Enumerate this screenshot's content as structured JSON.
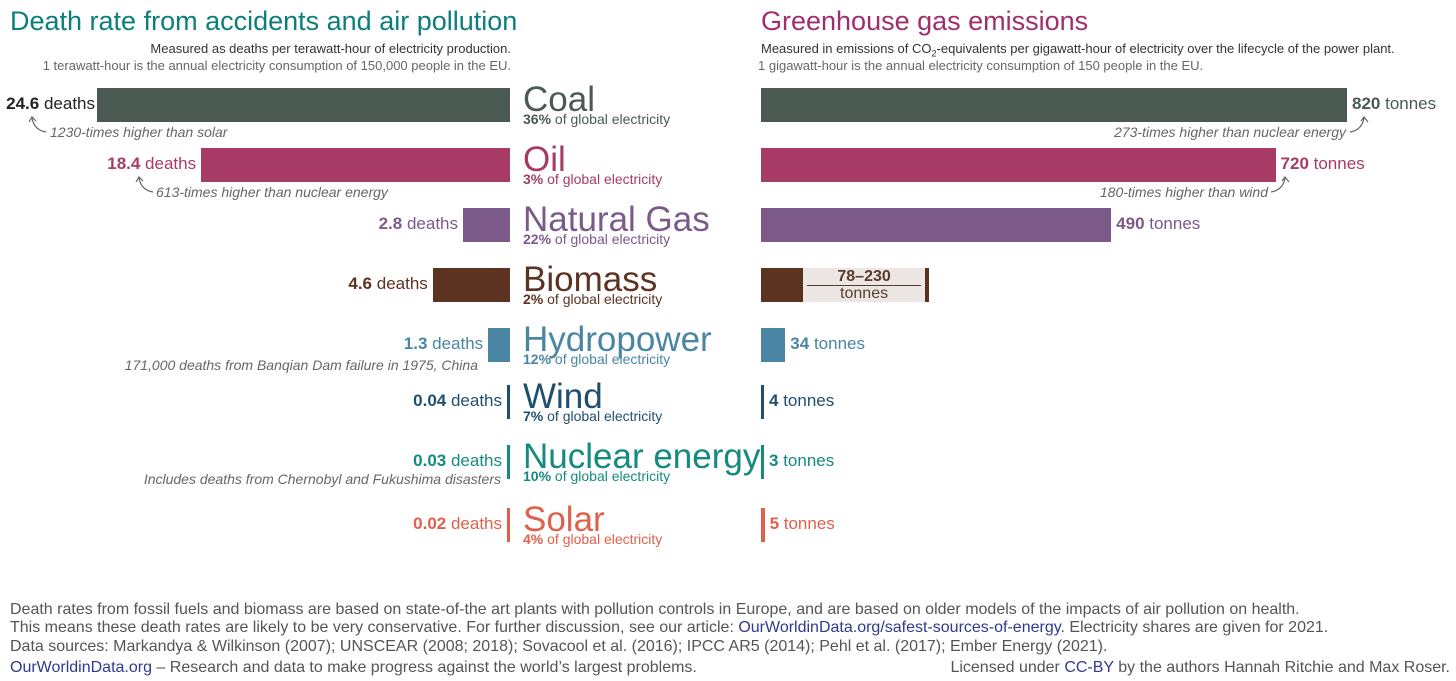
{
  "left": {
    "title": "Death rate from accidents and air pollution",
    "subtitle_line1": "Measured as deaths per terawatt-hour of electricity production.",
    "subtitle_line2": "1 terawatt-hour is the annual electricity consumption of 150,000 people in the EU."
  },
  "right": {
    "title": "Greenhouse gas emissions",
    "subtitle_line1_a": "Measured in emissions of CO",
    "subtitle_line1_sub": "2",
    "subtitle_line1_b": "-equivalents per gigawatt-hour of electricity over the lifecycle of the power plant.",
    "subtitle_line2": "1 gigawatt-hour is the annual electricity consumption of 150 people in the EU."
  },
  "sources": [
    {
      "name": "Coal",
      "share": "36%",
      "share_suffix": " of global electricity",
      "deaths_label": "24.6",
      "deaths_unit": " deaths",
      "emissions_label": "820",
      "emissions_unit": " tonnes"
    },
    {
      "name": "Oil",
      "share": "3%",
      "share_suffix": " of global electricity",
      "deaths_label": "18.4",
      "deaths_unit": " deaths",
      "emissions_label": "720",
      "emissions_unit": " tonnes"
    },
    {
      "name": "Natural Gas",
      "share": "22%",
      "share_suffix": " of global electricity",
      "deaths_label": "2.8",
      "deaths_unit": " deaths",
      "emissions_label": "490",
      "emissions_unit": " tonnes"
    },
    {
      "name": "Biomass",
      "share": "2%",
      "share_suffix": " of global electricity",
      "deaths_label": "4.6",
      "deaths_unit": " deaths",
      "emissions_label": "78–230",
      "emissions_unit": "tonnes"
    },
    {
      "name": "Hydropower",
      "share": "12%",
      "share_suffix": " of global electricity",
      "deaths_label": "1.3",
      "deaths_unit": " deaths",
      "emissions_label": "34",
      "emissions_unit": " tonnes"
    },
    {
      "name": "Wind",
      "share": "7%",
      "share_suffix": " of global electricity",
      "deaths_label": "0.04",
      "deaths_unit": " deaths",
      "emissions_label": "4",
      "emissions_unit": " tonnes"
    },
    {
      "name": "Nuclear energy",
      "share": "10%",
      "share_suffix": " of global electricity",
      "deaths_label": "0.03",
      "deaths_unit": " deaths",
      "emissions_label": "3",
      "emissions_unit": " tonnes"
    },
    {
      "name": "Solar",
      "share": "4%",
      "share_suffix": " of global electricity",
      "deaths_label": "0.02",
      "deaths_unit": " deaths",
      "emissions_label": "5",
      "emissions_unit": " tonnes"
    }
  ],
  "notes": {
    "coal_left": "1230-times higher than solar",
    "oil_left": "613-times higher than nuclear energy",
    "hydro_left": "171,000 deaths from Banqian Dam failure in 1975, China",
    "nuclear_left": "Includes deaths from Chernobyl and Fukushima disasters",
    "coal_right": "273-times higher than nuclear energy",
    "oil_right": "180-times higher than wind"
  },
  "footer": {
    "line1": "Death rates from fossil fuels and biomass are based on state-of-the art plants with pollution controls in Europe, and are based on older models of the impacts of air pollution on health.",
    "line2_a": "This means these death rates are likely to be very conservative. For further discussion, see our article: ",
    "line2_link": "OurWorldinData.org/safest-sources-of-energy",
    "line2_b": ". Electricity shares are given for 2021.",
    "line3": "Data sources: Markandya & Wilkinson (2007); UNSCEAR (2008; 2018); Sovacool et al. (2016); IPCC AR5 (2014); Pehl et al. (2017); Ember Energy (2021).",
    "line4_link": "OurWorldinData.org",
    "line4_b": " – Research and data to make progress against the world’s largest problems.",
    "license_a": "Licensed under ",
    "license_link": "CC-BY",
    "license_b": " by the authors Hannah Ritchie and Max Roser."
  },
  "colors": {
    "Coal": "#4a5a53",
    "Oil": "#a73b66",
    "Natural Gas": "#7b5a8a",
    "Biomass": "#5c3320",
    "Hydropower": "#4a86a4",
    "Wind": "#1f4e6e",
    "Nuclear energy": "#158a80",
    "Solar": "#e0604c"
  },
  "chart_data": [
    {
      "type": "bar",
      "title": "Death rate from accidents and air pollution",
      "categories": [
        "Coal",
        "Oil",
        "Natural Gas",
        "Biomass",
        "Hydropower",
        "Wind",
        "Nuclear energy",
        "Solar"
      ],
      "values": [
        24.6,
        18.4,
        2.8,
        4.6,
        1.3,
        0.04,
        0.03,
        0.02
      ],
      "unit": "deaths per terawatt-hour"
    },
    {
      "type": "bar",
      "title": "Greenhouse gas emissions",
      "categories": [
        "Coal",
        "Oil",
        "Natural Gas",
        "Biomass",
        "Hydropower",
        "Wind",
        "Nuclear energy",
        "Solar"
      ],
      "values": [
        820,
        720,
        490,
        230,
        34,
        4,
        3,
        5
      ],
      "ranges": {
        "Biomass": [
          78,
          230
        ]
      },
      "unit": "tonnes CO2-eq per gigawatt-hour"
    }
  ]
}
